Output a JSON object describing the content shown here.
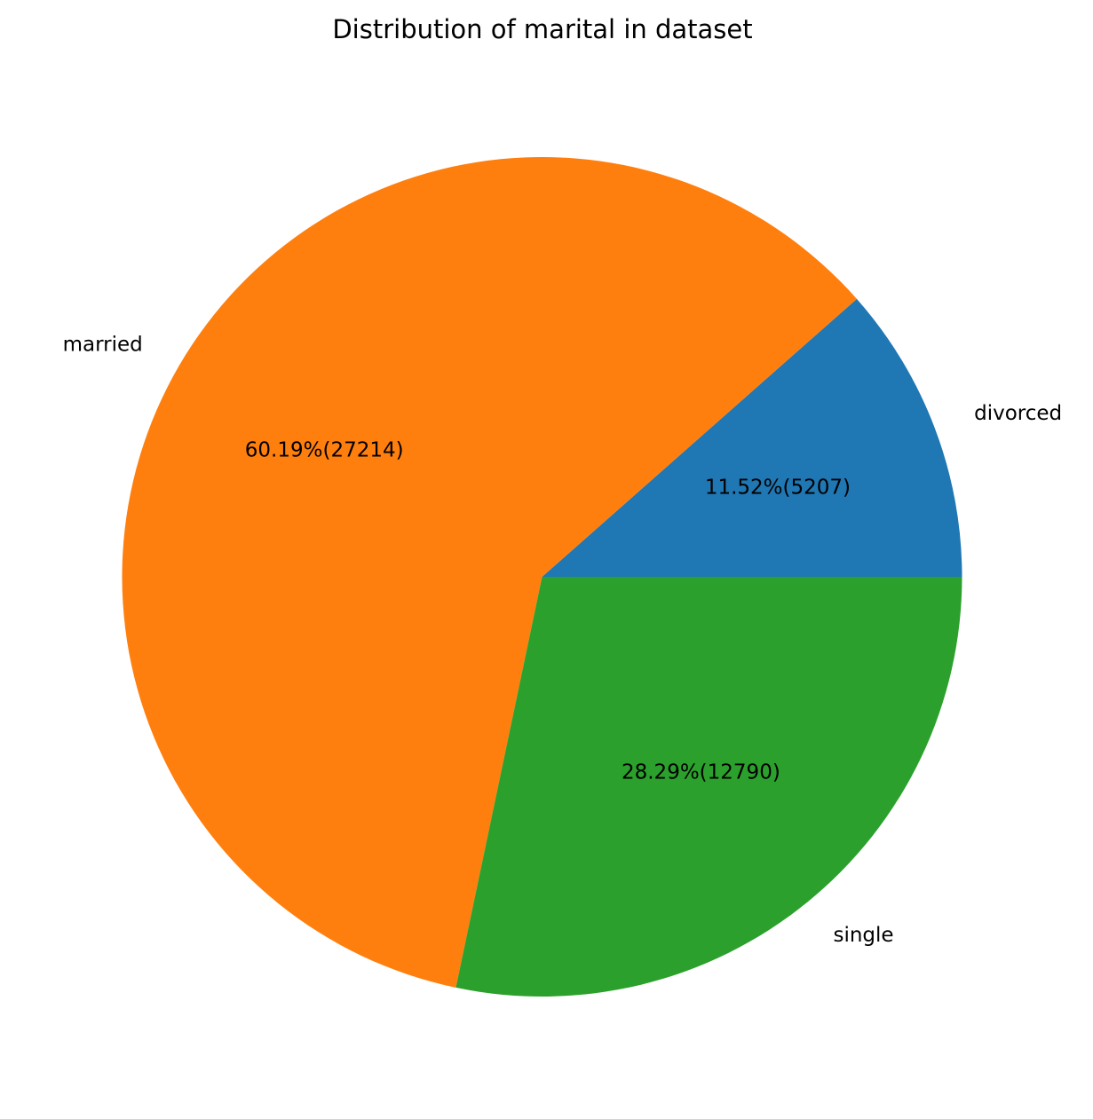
{
  "chart_data": {
    "type": "pie",
    "title": "Distribution of marital in dataset",
    "start_angle_deg": 0,
    "direction": "counterclockwise",
    "slices": [
      {
        "label": "divorced",
        "value": 5207,
        "percent_label": "11.52%(5207)",
        "color": "#1f77b4"
      },
      {
        "label": "married",
        "value": 27214,
        "percent_label": "60.19%(27214)",
        "color": "#ff7f0e"
      },
      {
        "label": "single",
        "value": 12790,
        "percent_label": "28.29%(12790)",
        "color": "#2ca02c"
      }
    ]
  }
}
